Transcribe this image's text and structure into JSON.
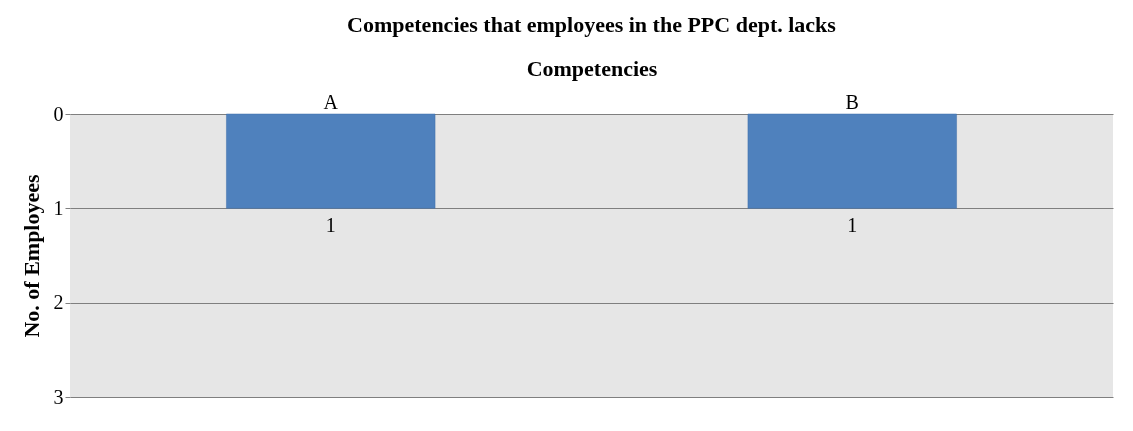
{
  "chart_data": {
    "type": "bar",
    "title": "Competencies that employees in the PPC dept. lacks",
    "xlabel": "Competencies",
    "ylabel": "No. of Employees",
    "categories": [
      "A",
      "B"
    ],
    "values": [
      1,
      1
    ],
    "color": "#4f81bd",
    "ylim": [
      3,
      0
    ],
    "yticks": [
      0,
      1,
      2,
      3
    ],
    "grid": "y",
    "data_labels": true
  }
}
